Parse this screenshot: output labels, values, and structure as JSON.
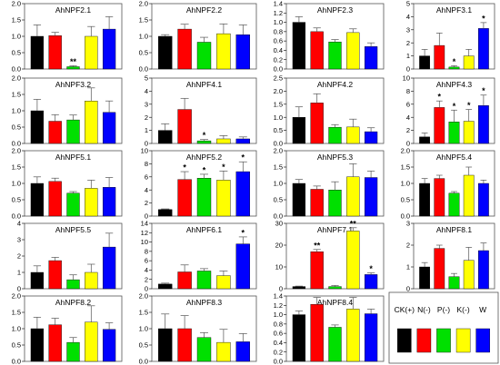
{
  "colors": [
    "#000000",
    "#ff0000",
    "#00e000",
    "#ffff00",
    "#0000ff"
  ],
  "legend": {
    "labels": [
      "CK(+)",
      "N(-)",
      "P(-)",
      "K(-)",
      "W"
    ]
  },
  "chart_data": [
    {
      "type": "bar",
      "title": "AhNPF2.1",
      "categories": [
        "CK(+)",
        "N(-)",
        "P(-)",
        "K(-)",
        "W"
      ],
      "ylim": [
        0,
        2.0
      ],
      "ticks": [
        "0.0",
        "0.5",
        "1.0",
        "1.5",
        "2.0"
      ],
      "values": [
        1.0,
        1.02,
        0.07,
        1.0,
        1.22
      ],
      "errors": [
        0.35,
        0.1,
        0.03,
        0.3,
        0.38
      ],
      "significance": [
        "",
        "",
        "**",
        "",
        ""
      ]
    },
    {
      "type": "bar",
      "title": "AhNPF2.2",
      "categories": [
        "CK(+)",
        "N(-)",
        "P(-)",
        "K(-)",
        "W"
      ],
      "ylim": [
        0,
        2.0
      ],
      "ticks": [
        "0.0",
        "0.5",
        "1.0",
        "1.5",
        "2.0"
      ],
      "values": [
        1.0,
        1.22,
        0.82,
        1.08,
        1.05
      ],
      "errors": [
        0.05,
        0.15,
        0.15,
        0.3,
        0.3
      ],
      "significance": [
        "",
        "",
        "",
        "",
        ""
      ]
    },
    {
      "type": "bar",
      "title": "AhNPF2.3",
      "categories": [
        "CK(+)",
        "N(-)",
        "P(-)",
        "K(-)",
        "W"
      ],
      "ylim": [
        0,
        1.4
      ],
      "ticks": [
        "0.0",
        "0.2",
        "0.4",
        "0.6",
        "0.8",
        "1.0",
        "1.2",
        "1.4"
      ],
      "values": [
        1.0,
        0.8,
        0.58,
        0.78,
        0.48
      ],
      "errors": [
        0.12,
        0.08,
        0.05,
        0.08,
        0.08
      ],
      "significance": [
        "",
        "",
        "",
        "",
        ""
      ]
    },
    {
      "type": "bar",
      "title": "AhNPF3.1",
      "categories": [
        "CK(+)",
        "N(-)",
        "P(-)",
        "K(-)",
        "W"
      ],
      "ylim": [
        0,
        5
      ],
      "ticks": [
        "0",
        "1",
        "2",
        "3",
        "4",
        "5"
      ],
      "values": [
        1.0,
        1.8,
        0.15,
        1.0,
        3.1
      ],
      "errors": [
        0.5,
        0.95,
        0.1,
        0.5,
        0.45
      ],
      "significance": [
        "",
        "",
        "*",
        "",
        "*"
      ]
    },
    {
      "type": "bar",
      "title": "AhNPF3.2",
      "categories": [
        "CK(+)",
        "N(-)",
        "P(-)",
        "K(-)",
        "W"
      ],
      "ylim": [
        0,
        2.0
      ],
      "ticks": [
        "0.0",
        "0.5",
        "1.0",
        "1.5",
        "2.0"
      ],
      "values": [
        1.0,
        0.68,
        0.72,
        1.3,
        0.95
      ],
      "errors": [
        0.35,
        0.2,
        0.15,
        0.4,
        0.35
      ],
      "significance": [
        "",
        "",
        "",
        "",
        ""
      ]
    },
    {
      "type": "bar",
      "title": "AhNPF4.1",
      "categories": [
        "CK(+)",
        "N(-)",
        "P(-)",
        "K(-)",
        "W"
      ],
      "ylim": [
        0,
        5
      ],
      "ticks": [
        "0",
        "1",
        "2",
        "3",
        "4",
        "5"
      ],
      "values": [
        1.0,
        2.6,
        0.2,
        0.35,
        0.35
      ],
      "errors": [
        0.5,
        0.85,
        0.1,
        0.25,
        0.15
      ],
      "significance": [
        "",
        "",
        "*",
        "",
        ""
      ]
    },
    {
      "type": "bar",
      "title": "AhNPF4.2",
      "categories": [
        "CK(+)",
        "N(-)",
        "P(-)",
        "K(-)",
        "W"
      ],
      "ylim": [
        0,
        2.5
      ],
      "ticks": [
        "0.0",
        "0.5",
        "1.0",
        "1.5",
        "2.0",
        "2.5"
      ],
      "values": [
        1.0,
        1.55,
        0.62,
        0.63,
        0.45
      ],
      "errors": [
        0.4,
        0.35,
        0.1,
        0.3,
        0.15
      ],
      "significance": [
        "",
        "",
        "",
        "",
        ""
      ]
    },
    {
      "type": "bar",
      "title": "AhNPF4.3",
      "categories": [
        "CK(+)",
        "N(-)",
        "P(-)",
        "K(-)",
        "W"
      ],
      "ylim": [
        0,
        10
      ],
      "ticks": [
        "0",
        "2",
        "4",
        "6",
        "8",
        "10"
      ],
      "values": [
        1.0,
        5.5,
        3.3,
        3.4,
        5.8
      ],
      "errors": [
        0.6,
        1.0,
        1.8,
        1.8,
        1.6
      ],
      "significance": [
        "",
        "*",
        "*",
        "*",
        "*"
      ]
    },
    {
      "type": "bar",
      "title": "AhNPF5.1",
      "categories": [
        "CK(+)",
        "N(-)",
        "P(-)",
        "K(-)",
        "W"
      ],
      "ylim": [
        0,
        2.0
      ],
      "ticks": [
        "0.0",
        "0.5",
        "1.0",
        "1.5",
        "2.0"
      ],
      "values": [
        1.0,
        1.06,
        0.7,
        0.85,
        0.88
      ],
      "errors": [
        0.2,
        0.1,
        0.05,
        0.25,
        0.3
      ],
      "significance": [
        "",
        "",
        "",
        "",
        ""
      ]
    },
    {
      "type": "bar",
      "title": "AhNPF5.2",
      "categories": [
        "CK(+)",
        "N(-)",
        "P(-)",
        "K(-)",
        "W"
      ],
      "ylim": [
        0,
        10
      ],
      "ticks": [
        "0",
        "2",
        "4",
        "6",
        "8",
        "10"
      ],
      "values": [
        1.0,
        5.6,
        5.8,
        5.5,
        6.8
      ],
      "errors": [
        0.1,
        1.2,
        0.6,
        1.4,
        1.5
      ],
      "significance": [
        "",
        "*",
        "*",
        "*",
        "*"
      ]
    },
    {
      "type": "bar",
      "title": "AhNPF5.3",
      "categories": [
        "CK(+)",
        "N(-)",
        "P(-)",
        "K(-)",
        "W"
      ],
      "ylim": [
        0,
        2.0
      ],
      "ticks": [
        "0.0",
        "0.5",
        "1.0",
        "1.5",
        "2.0"
      ],
      "values": [
        1.0,
        0.82,
        0.8,
        1.2,
        1.18
      ],
      "errors": [
        0.12,
        0.1,
        0.25,
        0.4,
        0.2
      ],
      "significance": [
        "",
        "",
        "",
        "",
        ""
      ]
    },
    {
      "type": "bar",
      "title": "AhNPF5.4",
      "categories": [
        "CK(+)",
        "N(-)",
        "P(-)",
        "K(-)",
        "W"
      ],
      "ylim": [
        0,
        2.0
      ],
      "ticks": [
        "0.0",
        "0.5",
        "1.0",
        "1.5",
        "2.0"
      ],
      "values": [
        1.0,
        1.15,
        0.7,
        1.25,
        1.0
      ],
      "errors": [
        0.15,
        0.1,
        0.05,
        0.25,
        0.1
      ],
      "significance": [
        "",
        "",
        "",
        "",
        ""
      ]
    },
    {
      "type": "bar",
      "title": "AhNPF5.5",
      "categories": [
        "CK(+)",
        "N(-)",
        "P(-)",
        "K(-)",
        "W"
      ],
      "ylim": [
        0,
        4
      ],
      "ticks": [
        "0",
        "1",
        "2",
        "3",
        "4"
      ],
      "values": [
        1.0,
        1.72,
        0.55,
        1.0,
        2.55
      ],
      "errors": [
        0.4,
        0.2,
        0.3,
        0.5,
        0.85
      ],
      "significance": [
        "",
        "",
        "",
        "",
        ""
      ]
    },
    {
      "type": "bar",
      "title": "AhNPF6.1",
      "categories": [
        "CK(+)",
        "N(-)",
        "P(-)",
        "K(-)",
        "W"
      ],
      "ylim": [
        0,
        14
      ],
      "ticks": [
        "0",
        "2",
        "4",
        "6",
        "8",
        "10",
        "12",
        "14"
      ],
      "values": [
        1.0,
        3.6,
        3.8,
        2.8,
        9.6
      ],
      "errors": [
        0.2,
        1.5,
        0.5,
        1.0,
        1.5
      ],
      "significance": [
        "",
        "",
        "",
        "",
        "*"
      ]
    },
    {
      "type": "bar",
      "title": "AhNPF7.1",
      "categories": [
        "CK(+)",
        "N(-)",
        "P(-)",
        "K(-)",
        "W"
      ],
      "ylim": [
        0,
        30
      ],
      "ticks": [
        "0",
        "10",
        "20",
        "30"
      ],
      "values": [
        1.0,
        17.0,
        1.0,
        26.5,
        6.5
      ],
      "errors": [
        0.2,
        1.0,
        0.5,
        1.5,
        0.8
      ],
      "significance": [
        "",
        "**",
        "",
        "**",
        "*"
      ]
    },
    {
      "type": "bar",
      "title": "AhNPF8.1",
      "categories": [
        "CK(+)",
        "N(-)",
        "P(-)",
        "K(-)",
        "W"
      ],
      "ylim": [
        0,
        3
      ],
      "ticks": [
        "0",
        "1",
        "2",
        "3"
      ],
      "values": [
        1.0,
        1.85,
        0.55,
        1.3,
        1.75
      ],
      "errors": [
        0.2,
        0.15,
        0.15,
        0.6,
        0.35
      ],
      "significance": [
        "",
        "",
        "",
        "",
        ""
      ]
    },
    {
      "type": "bar",
      "title": "AhNPF8.2",
      "categories": [
        "CK(+)",
        "N(-)",
        "P(-)",
        "K(-)",
        "W"
      ],
      "ylim": [
        0,
        2.0
      ],
      "ticks": [
        "0.0",
        "0.5",
        "1.0",
        "1.5",
        "2.0"
      ],
      "values": [
        1.0,
        1.12,
        0.58,
        1.2,
        0.98
      ],
      "errors": [
        0.35,
        0.2,
        0.15,
        0.5,
        0.2
      ],
      "significance": [
        "",
        "",
        "",
        "",
        ""
      ]
    },
    {
      "type": "bar",
      "title": "AhNPF8.3",
      "categories": [
        "CK(+)",
        "N(-)",
        "P(-)",
        "K(-)",
        "W"
      ],
      "ylim": [
        0,
        2.0
      ],
      "ticks": [
        "0.0",
        "0.5",
        "1.0",
        "1.5",
        "2.0"
      ],
      "values": [
        1.0,
        1.0,
        0.73,
        0.58,
        0.6
      ],
      "errors": [
        0.45,
        0.4,
        0.15,
        0.4,
        0.25
      ],
      "significance": [
        "",
        "",
        "",
        "",
        ""
      ]
    },
    {
      "type": "bar",
      "title": "AhNPF8.4",
      "categories": [
        "CK(+)",
        "N(-)",
        "P(-)",
        "K(-)",
        "W"
      ],
      "ylim": [
        0,
        1.4
      ],
      "ticks": [
        "0.0",
        "0.2",
        "0.4",
        "0.6",
        "0.8",
        "1.0",
        "1.2",
        "1.4"
      ],
      "values": [
        1.0,
        1.22,
        0.73,
        1.12,
        1.02
      ],
      "errors": [
        0.08,
        0.15,
        0.05,
        0.25,
        0.1
      ],
      "significance": [
        "",
        "",
        "",
        "",
        ""
      ]
    }
  ]
}
